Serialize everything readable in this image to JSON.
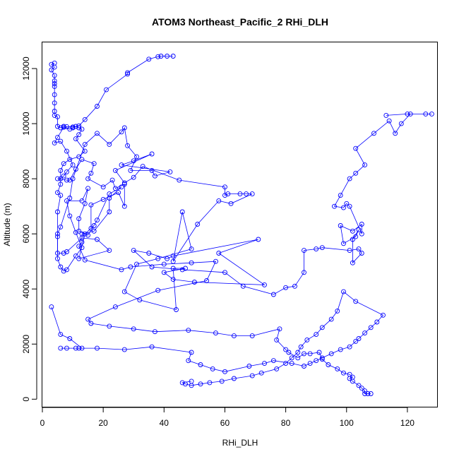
{
  "chart_data": {
    "type": "line",
    "title": "ATOM3 Northeast_Pacific_2 RHi_DLH",
    "xlabel": "RHi_DLH",
    "ylabel": "Altitude (m)",
    "xlim": [
      0,
      130
    ],
    "ylim": [
      -300,
      12950
    ],
    "xticks": [
      0,
      20,
      40,
      60,
      80,
      100,
      120
    ],
    "yticks": [
      0,
      2000,
      4000,
      6000,
      8000,
      10000,
      12000
    ],
    "grid": false,
    "color": "#0000ff",
    "marker": "open-circle",
    "series": [
      {
        "points": [
          [
            43,
            12450
          ],
          [
            41,
            12450
          ],
          [
            39,
            12450
          ],
          [
            38,
            12430
          ],
          [
            35,
            12340
          ],
          [
            28,
            11850
          ],
          [
            28,
            11800
          ],
          [
            21,
            11230
          ],
          [
            18,
            10630
          ],
          [
            14,
            10150
          ],
          [
            12,
            9920
          ],
          [
            10,
            9880
          ],
          [
            8,
            9890
          ],
          [
            7,
            9870
          ],
          [
            5,
            9500
          ],
          [
            4,
            9300
          ],
          [
            6,
            9360
          ],
          [
            8,
            9000
          ],
          [
            10,
            8500
          ],
          [
            8,
            8250
          ],
          [
            7,
            8100
          ],
          [
            6,
            8000
          ],
          [
            5,
            8000
          ],
          [
            8,
            7950
          ],
          [
            9,
            7950
          ],
          [
            11,
            8350
          ],
          [
            13,
            8700
          ],
          [
            17,
            8550
          ],
          [
            16,
            8200
          ],
          [
            15,
            8000
          ],
          [
            20,
            7700
          ],
          [
            23,
            7950
          ],
          [
            24,
            7650
          ],
          [
            27,
            7800
          ],
          [
            27,
            7000
          ],
          [
            25,
            7500
          ],
          [
            20,
            7250
          ],
          [
            16,
            7050
          ],
          [
            16,
            6200
          ],
          [
            17,
            6300
          ],
          [
            14,
            6000
          ],
          [
            12,
            5100
          ],
          [
            22,
            5400
          ],
          [
            18,
            5800
          ],
          [
            13,
            5850
          ],
          [
            8,
            5350
          ],
          [
            7,
            5300
          ],
          [
            5,
            5300
          ],
          [
            5,
            6000
          ],
          [
            6,
            6250
          ],
          [
            9,
            7300
          ],
          [
            10,
            8000
          ],
          [
            14,
            9250
          ],
          [
            18,
            9650
          ],
          [
            22,
            9250
          ],
          [
            26,
            9700
          ],
          [
            27,
            9850
          ],
          [
            28,
            9200
          ],
          [
            31,
            8800
          ],
          [
            29,
            8300
          ],
          [
            36,
            8300
          ],
          [
            37,
            8100
          ],
          [
            42,
            8250
          ],
          [
            26,
            8500
          ],
          [
            30,
            8650
          ],
          [
            36,
            8900
          ],
          [
            24,
            8300
          ],
          [
            27,
            7850
          ],
          [
            30,
            8050
          ],
          [
            33,
            8450
          ],
          [
            45,
            7950
          ],
          [
            60,
            7700
          ],
          [
            60,
            7400
          ],
          [
            61,
            7450
          ],
          [
            65,
            7450
          ],
          [
            67,
            7450
          ],
          [
            69,
            7450
          ],
          [
            62,
            7100
          ],
          [
            58,
            7200
          ],
          [
            51,
            6350
          ],
          [
            43,
            5000
          ],
          [
            46,
            6800
          ],
          [
            49,
            5450
          ],
          [
            38,
            5100
          ],
          [
            31,
            4900
          ],
          [
            27,
            3900
          ],
          [
            32,
            3600
          ],
          [
            44,
            3250
          ],
          [
            43,
            4750
          ],
          [
            47,
            4750
          ],
          [
            40,
            4600
          ],
          [
            43,
            4350
          ],
          [
            50,
            4250
          ],
          [
            73,
            4150
          ],
          [
            58,
            5300
          ],
          [
            71,
            5800
          ],
          [
            43,
            5200
          ],
          [
            41,
            5100
          ],
          [
            35,
            5300
          ],
          [
            30,
            5400
          ],
          [
            36,
            4800
          ],
          [
            46,
            4700
          ],
          [
            60,
            4600
          ],
          [
            66,
            4100
          ],
          [
            76,
            3800
          ],
          [
            80,
            4050
          ],
          [
            83,
            4100
          ],
          [
            86,
            4600
          ],
          [
            86,
            5400
          ],
          [
            90,
            5450
          ],
          [
            92,
            5500
          ],
          [
            101,
            5400
          ],
          [
            104,
            5450
          ],
          [
            105,
            5300
          ],
          [
            102,
            4950
          ],
          [
            102,
            5800
          ],
          [
            104,
            6150
          ],
          [
            103,
            5900
          ],
          [
            99,
            5650
          ],
          [
            98,
            6300
          ],
          [
            102,
            6100
          ],
          [
            105,
            6350
          ],
          [
            105,
            6000
          ],
          [
            101,
            7000
          ],
          [
            100,
            7100
          ],
          [
            99,
            6950
          ],
          [
            96,
            7000
          ],
          [
            98,
            7400
          ],
          [
            101,
            8000
          ],
          [
            103,
            8200
          ],
          [
            106,
            8500
          ],
          [
            103,
            9100
          ],
          [
            109,
            9650
          ],
          [
            114,
            10100
          ],
          [
            116,
            9650
          ],
          [
            118,
            10000
          ],
          [
            121,
            10350
          ],
          [
            126,
            10350
          ],
          [
            128,
            10350
          ],
          [
            120,
            10350
          ],
          [
            113,
            10300
          ]
        ]
      },
      {
        "points": [
          [
            4,
            12200
          ],
          [
            3,
            12150
          ],
          [
            4,
            12050
          ],
          [
            3,
            11950
          ],
          [
            4,
            11750
          ],
          [
            4,
            11550
          ],
          [
            4,
            11450
          ],
          [
            4,
            11350
          ],
          [
            4,
            11050
          ],
          [
            4,
            10750
          ],
          [
            4,
            10450
          ],
          [
            4,
            10300
          ],
          [
            5,
            10250
          ],
          [
            5,
            9900
          ],
          [
            6,
            9850
          ],
          [
            7,
            9900
          ],
          [
            9,
            9800
          ],
          [
            10,
            9850
          ],
          [
            11,
            9900
          ],
          [
            12,
            9850
          ],
          [
            13,
            9800
          ],
          [
            12,
            9600
          ],
          [
            11,
            9450
          ],
          [
            14,
            9000
          ],
          [
            12,
            8800
          ],
          [
            9,
            8700
          ],
          [
            7,
            8550
          ],
          [
            6,
            8300
          ],
          [
            6,
            7800
          ],
          [
            5,
            7500
          ],
          [
            6,
            7400
          ],
          [
            5,
            6800
          ],
          [
            5,
            5900
          ],
          [
            5,
            5100
          ],
          [
            6,
            4800
          ],
          [
            7,
            4650
          ],
          [
            8,
            4700
          ],
          [
            11,
            5200
          ],
          [
            13,
            5500
          ],
          [
            11,
            6050
          ],
          [
            9,
            6650
          ],
          [
            8,
            7200
          ],
          [
            13,
            7200
          ],
          [
            15,
            7650
          ],
          [
            14,
            7100
          ],
          [
            12,
            6550
          ],
          [
            12,
            6100
          ],
          [
            15,
            5950
          ],
          [
            18,
            6500
          ],
          [
            22,
            7450
          ],
          [
            26,
            7700
          ],
          [
            22,
            7300
          ],
          [
            22,
            6800
          ],
          [
            17,
            6100
          ],
          [
            13,
            6000
          ],
          [
            13,
            5700
          ],
          [
            12,
            5550
          ],
          [
            14,
            5050
          ],
          [
            26,
            4700
          ],
          [
            29,
            4800
          ],
          [
            40,
            4900
          ],
          [
            49,
            4950
          ],
          [
            57,
            5000
          ],
          [
            54,
            4300
          ],
          [
            38,
            3950
          ],
          [
            24,
            3350
          ],
          [
            15,
            2900
          ],
          [
            16,
            2750
          ],
          [
            22,
            2650
          ],
          [
            30,
            2550
          ],
          [
            37,
            2450
          ],
          [
            48,
            2500
          ],
          [
            57,
            2400
          ],
          [
            63,
            2300
          ],
          [
            69,
            2300
          ],
          [
            78,
            2550
          ],
          [
            77,
            2150
          ],
          [
            80,
            1800
          ],
          [
            81,
            1700
          ],
          [
            84,
            1500
          ],
          [
            86,
            1650
          ],
          [
            88,
            1650
          ],
          [
            91,
            1700
          ],
          [
            92,
            1450
          ],
          [
            94,
            1250
          ],
          [
            97,
            1100
          ],
          [
            99,
            950
          ],
          [
            101,
            900
          ],
          [
            102,
            800
          ],
          [
            101,
            750
          ],
          [
            102,
            650
          ],
          [
            104,
            500
          ],
          [
            105,
            400
          ],
          [
            106,
            300
          ],
          [
            106,
            200
          ],
          [
            107,
            200
          ],
          [
            108,
            200
          ]
        ]
      },
      {
        "points": [
          [
            3,
            3350
          ],
          [
            6,
            2350
          ],
          [
            9,
            2200
          ],
          [
            13,
            1850
          ],
          [
            12,
            1850
          ],
          [
            11,
            1850
          ],
          [
            8,
            1850
          ],
          [
            6,
            1850
          ],
          [
            18,
            1850
          ],
          [
            27,
            1800
          ],
          [
            36,
            1900
          ],
          [
            49,
            1700
          ],
          [
            48,
            1400
          ],
          [
            52,
            1250
          ],
          [
            56,
            1100
          ],
          [
            60,
            1000
          ],
          [
            68,
            1200
          ],
          [
            73,
            1300
          ],
          [
            76,
            1400
          ],
          [
            82,
            1300
          ],
          [
            86,
            1200
          ],
          [
            88,
            1300
          ],
          [
            90,
            1400
          ],
          [
            92,
            1500
          ],
          [
            95,
            1650
          ],
          [
            98,
            1800
          ],
          [
            101,
            1900
          ],
          [
            103,
            2100
          ],
          [
            104,
            2200
          ],
          [
            106,
            2400
          ],
          [
            108,
            2600
          ],
          [
            110,
            2800
          ],
          [
            112,
            3050
          ],
          [
            103,
            3550
          ],
          [
            99,
            3900
          ],
          [
            97,
            3200
          ],
          [
            95,
            2900
          ],
          [
            92,
            2600
          ],
          [
            90,
            2350
          ],
          [
            87,
            2150
          ],
          [
            85,
            1900
          ],
          [
            84,
            1700
          ],
          [
            82,
            1500
          ],
          [
            80,
            1300
          ],
          [
            77,
            1100
          ],
          [
            72,
            950
          ],
          [
            69,
            850
          ],
          [
            63,
            750
          ],
          [
            59,
            650
          ],
          [
            55,
            600
          ],
          [
            52,
            550
          ],
          [
            49,
            500
          ],
          [
            47,
            550
          ],
          [
            46,
            600
          ],
          [
            49,
            650
          ]
        ]
      }
    ]
  }
}
